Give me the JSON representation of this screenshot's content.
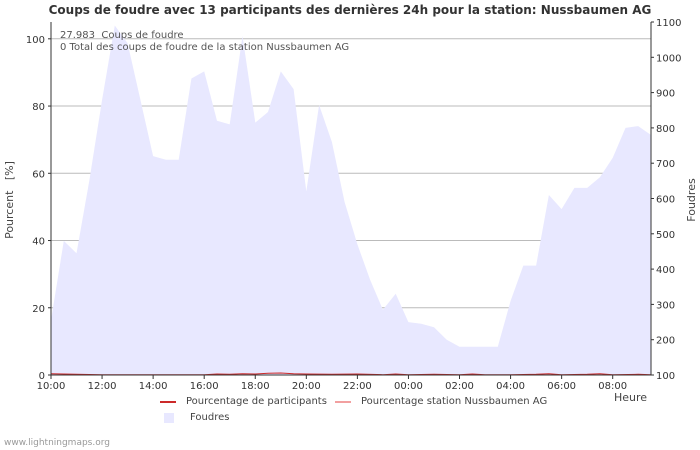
{
  "title": "Coups de foudre avec 13 participants des dernières 24h pour la station: Nussbaumen AG",
  "info": {
    "line1_value": "27.983",
    "line1_label": "Coups de foudre",
    "line2": "0 Total des coups de foudre de la station Nussbaumen AG"
  },
  "footer": "www.lightningmaps.org",
  "colors": {
    "area": "#e8e8ff",
    "participants": "#cc2a2a",
    "station": "#f2a0a0",
    "grid": "#bbbbbb",
    "axis": "#333333"
  },
  "chart_data": {
    "type": "area",
    "x_unit": "hours since 10:00",
    "ylabel_left": "Pourcent   [%]",
    "ylabel_right": "Foudres",
    "xlabel": "Heure",
    "ylim_left": [
      0,
      105
    ],
    "ylim_right": [
      100,
      1100
    ],
    "yticks_left": [
      0,
      20,
      40,
      60,
      80,
      100
    ],
    "yticks_right": [
      100,
      200,
      300,
      400,
      500,
      600,
      700,
      800,
      900,
      1000,
      1100
    ],
    "xticks": [
      {
        "x": 0,
        "label": "10:00"
      },
      {
        "x": 2,
        "label": "12:00"
      },
      {
        "x": 4,
        "label": "14:00"
      },
      {
        "x": 6,
        "label": "16:00"
      },
      {
        "x": 8,
        "label": "18:00"
      },
      {
        "x": 10,
        "label": "20:00"
      },
      {
        "x": 12,
        "label": "22:00"
      },
      {
        "x": 14,
        "label": "00:00"
      },
      {
        "x": 16,
        "label": "02:00"
      },
      {
        "x": 18,
        "label": "04:00"
      },
      {
        "x": 20,
        "label": "06:00"
      },
      {
        "x": 22,
        "label": "08:00"
      }
    ],
    "series": [
      {
        "name": "Foudres",
        "axis": "right",
        "x": [
          0,
          0.5,
          1,
          1.5,
          2,
          2.5,
          3,
          3.5,
          4,
          4.5,
          5,
          5.5,
          6,
          6.5,
          7,
          7.5,
          8,
          8.5,
          9,
          9.5,
          10,
          10.5,
          11,
          11.5,
          12,
          12.5,
          13,
          13.5,
          14,
          14.5,
          15,
          15.5,
          16,
          16.5,
          17,
          17.5,
          18,
          18.5,
          19,
          19.5,
          20,
          20.5,
          21,
          21.5,
          22,
          22.5,
          23,
          23.5
        ],
        "values": [
          255,
          480,
          445,
          650,
          880,
          1090,
          1040,
          880,
          720,
          710,
          710,
          940,
          960,
          820,
          810,
          1060,
          815,
          845,
          960,
          910,
          620,
          865,
          760,
          590,
          470,
          370,
          285,
          330,
          250,
          245,
          235,
          200,
          180,
          180,
          180,
          180,
          310,
          410,
          410,
          610,
          570,
          630,
          630,
          660,
          715,
          800,
          805,
          780
        ]
      },
      {
        "name": "Pourcentage de participants",
        "axis": "left",
        "x": [
          0,
          1,
          2,
          3,
          4,
          5,
          6,
          6.5,
          7,
          7.5,
          8,
          8.5,
          9,
          9.5,
          10,
          11,
          12,
          13,
          13.5,
          14,
          15,
          16,
          16.5,
          17,
          18,
          19,
          19.5,
          20,
          21,
          21.5,
          22,
          23,
          23.5
        ],
        "values": [
          0.4,
          0.2,
          0.1,
          0.1,
          0.1,
          0.1,
          0.1,
          0.3,
          0.2,
          0.4,
          0.3,
          0.5,
          0.6,
          0.4,
          0.3,
          0.2,
          0.3,
          0.1,
          0.3,
          0.1,
          0.2,
          0.1,
          0.3,
          0.1,
          0.1,
          0.2,
          0.4,
          0.1,
          0.2,
          0.4,
          0.1,
          0.2,
          0.1
        ]
      },
      {
        "name": "Pourcentage station Nussbaumen AG",
        "axis": "left",
        "x": [
          0,
          23.5
        ],
        "values": [
          0,
          0
        ]
      }
    ],
    "legend": [
      {
        "label": "Pourcentage de participants",
        "kind": "line",
        "color_key": "participants"
      },
      {
        "label": "Pourcentage station Nussbaumen AG",
        "kind": "line",
        "color_key": "station"
      },
      {
        "label": "Foudres",
        "kind": "box",
        "color_key": "area"
      }
    ]
  }
}
